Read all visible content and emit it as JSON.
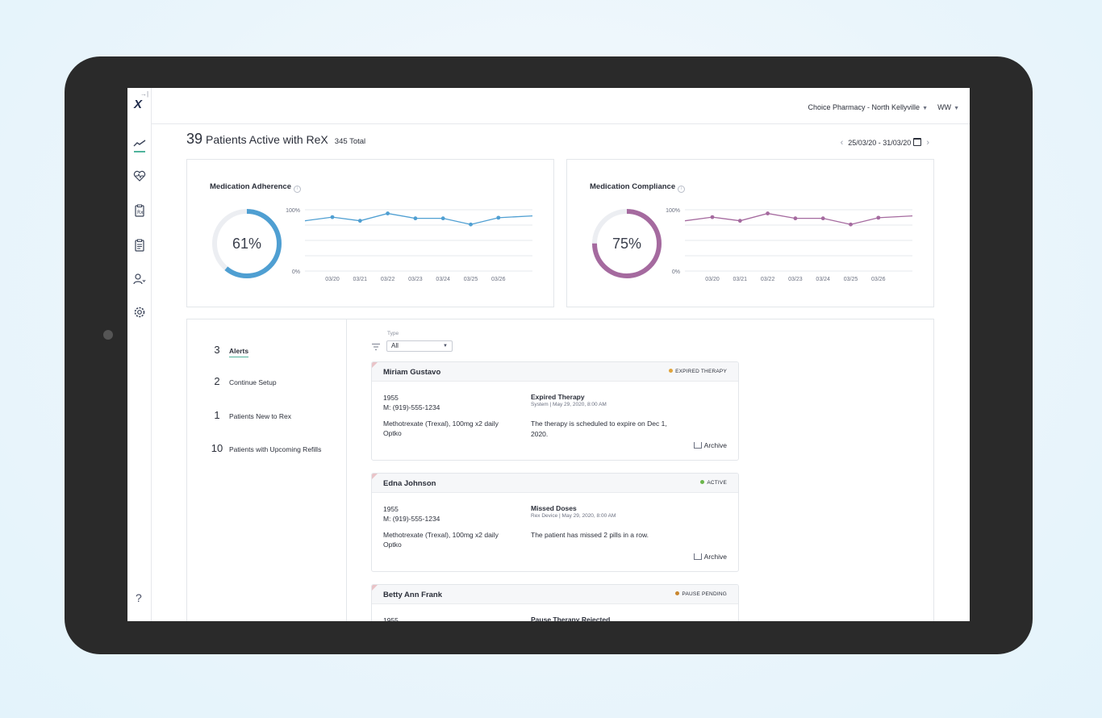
{
  "sidebar": {
    "collapse_glyph": "→|",
    "logo": "X",
    "icons": [
      "trend-icon",
      "heartbeat-icon",
      "prescription-icon",
      "clipboard-icon",
      "patient-download-icon",
      "gear-icon"
    ],
    "help": "?"
  },
  "header": {
    "pharmacy": "Choice Pharmacy - North Kellyville",
    "user": "WW"
  },
  "summary": {
    "count": "39",
    "label": "Patients Active with ReX",
    "total": "345 Total",
    "date_range": "25/03/20 - 31/03/20"
  },
  "adherence": {
    "title": "Medication Adherence",
    "value_label": "61%",
    "value": 0.61,
    "color": "#4f9fd2"
  },
  "compliance": {
    "title": "Medication Compliance",
    "value_label": "75%",
    "value": 0.75,
    "color": "#a56a9f"
  },
  "chart_data": [
    {
      "type": "line",
      "x": [
        "03/20",
        "03/21",
        "03/22",
        "03/23",
        "03/24",
        "03/25",
        "03/26"
      ],
      "series": [
        {
          "values": [
            88,
            82,
            94,
            86,
            86,
            76,
            87
          ]
        }
      ],
      "ytick_labels": [
        "100%",
        "0%"
      ],
      "ylim": [
        0,
        100
      ],
      "grid": true
    },
    {
      "type": "line",
      "x": [
        "03/20",
        "03/21",
        "03/22",
        "03/23",
        "03/24",
        "03/25",
        "03/26"
      ],
      "series": [
        {
          "values": [
            88,
            82,
            94,
            86,
            86,
            76,
            87
          ]
        }
      ],
      "ytick_labels": [
        "100%",
        "0%"
      ],
      "ylim": [
        0,
        100
      ],
      "grid": true
    }
  ],
  "menu": [
    {
      "count": "3",
      "label": "Alerts"
    },
    {
      "count": "2",
      "label": "Continue Setup"
    },
    {
      "count": "1",
      "label": "Patients New to Rex"
    },
    {
      "count": "10",
      "label": "Patients with Upcoming Refills"
    }
  ],
  "filter": {
    "label": "Type",
    "value": "All"
  },
  "alerts": [
    {
      "name": "Miriam Gustavo",
      "status": "EXPIRED THERAPY",
      "status_color": "#e0a43c",
      "year": "1955",
      "phone": "M: (919)-555-1234",
      "med1": "Methotrexate (Trexal), 100mg x2 daily",
      "med2": "Optko",
      "type": "Expired Therapy",
      "meta": "System | May 29, 2020, 8:00 AM",
      "message": "The therapy is scheduled to expire on Dec 1, 2020.",
      "archive": "Archive"
    },
    {
      "name": "Edna Johnson",
      "status": "ACTIVE",
      "status_color": "#6bb54a",
      "year": "1955",
      "phone": "M: (919)-555-1234",
      "med1": "Methotrexate (Trexal), 100mg x2 daily",
      "med2": "Optko",
      "type": "Missed Doses",
      "meta": "Rex Device | May 29, 2020, 8:00 AM",
      "message": "The patient has missed 2 pills in a row.",
      "archive": "Archive"
    },
    {
      "name": "Betty Ann Frank",
      "status": "PAUSE PENDING",
      "status_color": "#c9862e",
      "year": "1955",
      "type": "Pause Therapy Rejected"
    }
  ]
}
